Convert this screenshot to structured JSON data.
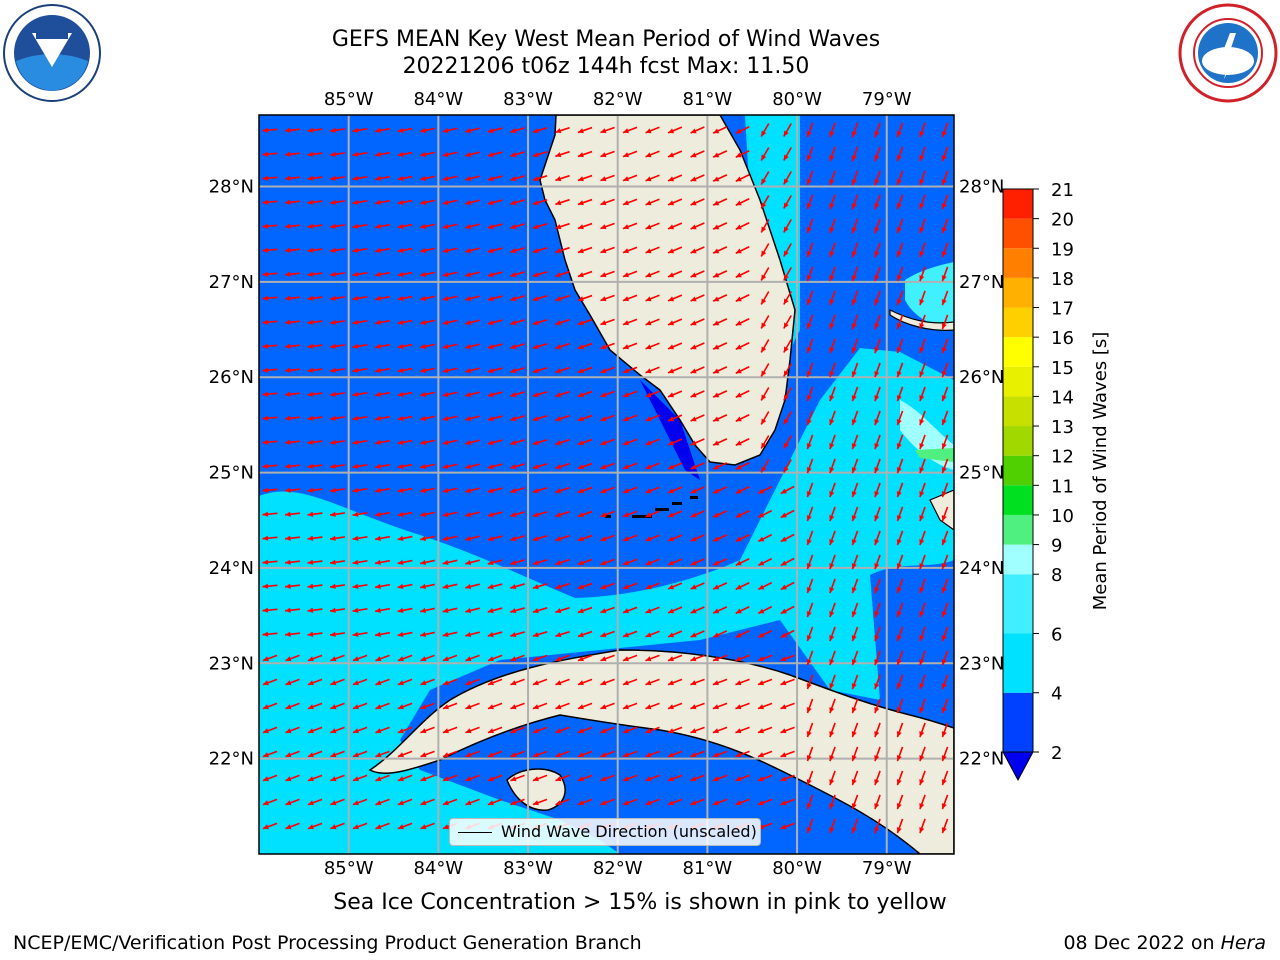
{
  "title": {
    "line1": "GEFS MEAN Key West Mean Period of Wind Waves",
    "line2": "20221206 t06z 144h fcst   Max: 11.50"
  },
  "logos": {
    "left": "noaa-logo",
    "right": "nws-logo"
  },
  "map": {
    "lon_labels": [
      "85°W",
      "84°W",
      "83°W",
      "82°W",
      "81°W",
      "80°W",
      "79°W"
    ],
    "lat_labels": [
      "28°N",
      "27°N",
      "26°N",
      "25°N",
      "24°N",
      "23°N",
      "22°N"
    ],
    "lon_range": [
      -86.0,
      -78.25
    ],
    "lat_range": [
      21.0,
      28.75
    ],
    "legend_label": "Wind Wave Direction (unscaled)",
    "arrow_color": "#ff0000",
    "land_color": "#eeecdc"
  },
  "colorbar": {
    "label": "Mean Period of Wind Waves [s]",
    "ticks": [
      "2",
      "4",
      "6",
      "8",
      "9",
      "10",
      "11",
      "12",
      "13",
      "14",
      "15",
      "16",
      "17",
      "18",
      "19",
      "20",
      "21"
    ],
    "colors": [
      "#0040ff",
      "#00e0ff",
      "#40f0ff",
      "#a0ffff",
      "#50f080",
      "#00e020",
      "#50d000",
      "#a0d800",
      "#c8e000",
      "#e8f000",
      "#ffff00",
      "#ffd000",
      "#ffb000",
      "#ff8000",
      "#ff5000",
      "#ff2000"
    ],
    "extend_color": "#0000ee"
  },
  "footer": {
    "note": "Sea Ice Concentration > 15% is shown in pink to yellow",
    "credit_left": "NCEP/EMC/Verification Post Processing Product Generation Branch",
    "date": "08 Dec 2022 on ",
    "host": "Hera"
  }
}
